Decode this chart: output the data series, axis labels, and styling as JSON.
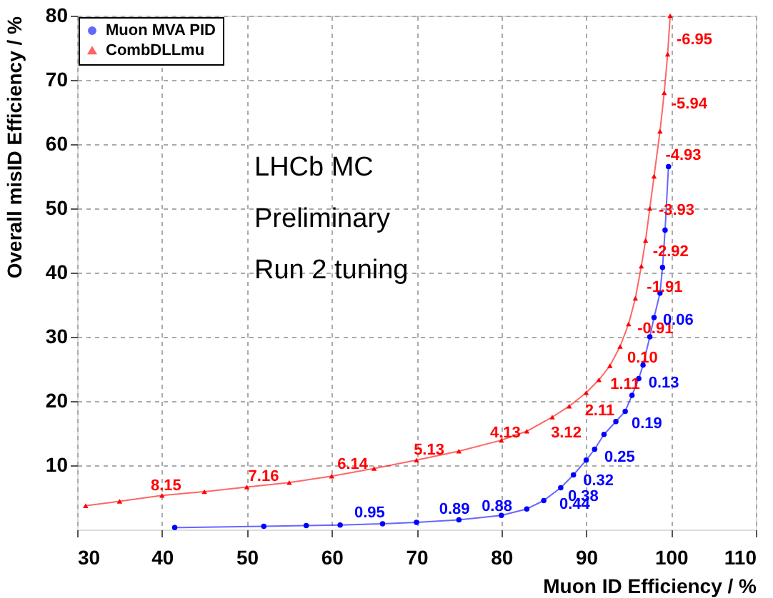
{
  "chart_data": {
    "type": "line",
    "xlabel": "Muon ID Efficiency / %",
    "ylabel": "Overall misID Efficiency / %",
    "xlim": [
      30,
      110
    ],
    "xticks": [
      30,
      40,
      50,
      60,
      70,
      80,
      90,
      100,
      110
    ],
    "ylim": [
      0,
      80
    ],
    "yticks": [
      10,
      20,
      30,
      40,
      50,
      60,
      70,
      80
    ],
    "grid": true,
    "legend": "top left",
    "line_style": "solid",
    "series": [
      {
        "name": "Muon MVA PID",
        "color": "#0000ff",
        "marker": "circle",
        "x": [
          41.5,
          52,
          57,
          61,
          66,
          70,
          75,
          80,
          83,
          85,
          87,
          88.5,
          90,
          91,
          92.1,
          93.5,
          94.6,
          95.4,
          96.2,
          96.7,
          97.5,
          98,
          98.7,
          99,
          99.3,
          99.7
        ],
        "values": [
          0.3,
          0.5,
          0.6,
          0.7,
          0.9,
          1.1,
          1.5,
          2.2,
          3.2,
          4.5,
          6.5,
          8.5,
          10.8,
          12.5,
          14.8,
          16.8,
          18.4,
          20.9,
          23.5,
          25.6,
          30,
          33,
          36.8,
          40.8,
          46.6,
          56.5
        ]
      },
      {
        "name": "CombDLLmu",
        "color": "#ff0000",
        "marker": "triangle",
        "x": [
          31,
          35,
          40,
          45,
          50,
          55,
          60,
          65,
          70,
          75,
          80,
          83,
          86,
          88,
          90,
          91.5,
          92.8,
          94,
          95,
          95.8,
          96.5,
          97,
          97.5,
          98,
          98.7,
          99.2,
          99.6,
          99.9
        ],
        "values": [
          3.7,
          4.4,
          5.3,
          5.9,
          6.6,
          7.3,
          8.3,
          9.5,
          10.8,
          12.2,
          13.9,
          15.3,
          17.5,
          19.2,
          21.3,
          23.3,
          25.5,
          28.5,
          32,
          36,
          41,
          45,
          50,
          55,
          62,
          68,
          74,
          80
        ]
      }
    ],
    "annotations": [
      "LHCb MC",
      "Preliminary",
      "Run 2 tuning",
      {
        "text": "8.15",
        "x": 38,
        "y": 5.0
      },
      {
        "text": "7.16",
        "x": 49.5,
        "y": 6.5
      },
      {
        "text": "6.14",
        "x": 60,
        "y": 8.3
      },
      {
        "text": "5.13",
        "x": 69,
        "y": 10.6
      },
      {
        "text": "4.13",
        "x": 78,
        "y": 13.2
      },
      {
        "text": "3.12",
        "x": 85,
        "y": 16.8
      },
      {
        "text": "2.11",
        "x": 89,
        "y": 20.2
      },
      {
        "text": "1.11",
        "x": 92,
        "y": 24.3
      },
      {
        "text": "0.10",
        "x": 94,
        "y": 28.5
      },
      {
        "text": "-0.91",
        "x": 95.2,
        "y": 33
      },
      {
        "text": "-1.91",
        "x": 96.3,
        "y": 39.5
      },
      {
        "text": "-2.92",
        "x": 97,
        "y": 45
      },
      {
        "text": "-3.93",
        "x": 97.7,
        "y": 51.5
      },
      {
        "text": "-4.93",
        "x": 98.5,
        "y": 60
      },
      {
        "text": "-5.94",
        "x": 99.2,
        "y": 68
      },
      {
        "text": "-6.95",
        "x": 99.8,
        "y": 78
      },
      {
        "text": "0.06",
        "x": 98.2,
        "y": 34.3
      },
      {
        "text": "0.13",
        "x": 96.5,
        "y": 24.6
      },
      {
        "text": "0.19",
        "x": 94.5,
        "y": 18.2
      },
      {
        "text": "0.25",
        "x": 91.3,
        "y": 13
      },
      {
        "text": "0.32",
        "x": 88.8,
        "y": 9.3
      },
      {
        "text": "0.38",
        "x": 87,
        "y": 6.9
      },
      {
        "text": "0.44",
        "x": 86,
        "y": 5.7
      },
      {
        "text": "0.95",
        "x": 62,
        "y": 0.8
      },
      {
        "text": "0.89",
        "x": 72,
        "y": 1.3
      },
      {
        "text": "0.88",
        "x": 77,
        "y": 1.8
      }
    ]
  }
}
